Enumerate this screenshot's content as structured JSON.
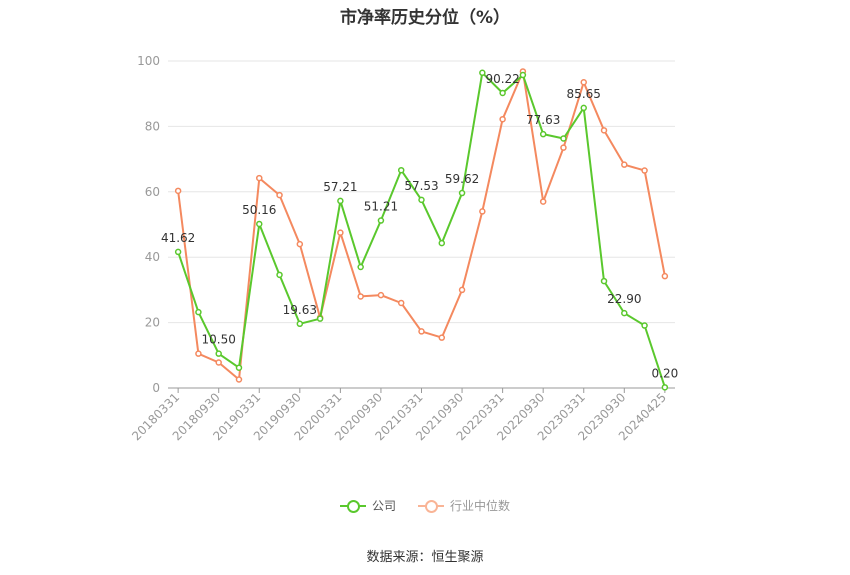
{
  "chart_data": {
    "type": "line",
    "title": "市净率历史分位（%）",
    "ylim": [
      0,
      100
    ],
    "yticks": [
      0,
      20,
      40,
      60,
      80,
      100
    ],
    "grid": "horizontal",
    "legend_position": "bottom",
    "x_tick_labels": [
      "20180331",
      "20180930",
      "20190331",
      "20190930",
      "20200331",
      "20200930",
      "20210331",
      "20210930",
      "20220331",
      "20220930",
      "20230331",
      "20230930",
      "20240425"
    ],
    "x": [
      "20180331",
      "20180630",
      "20180930",
      "20181231",
      "20190331",
      "20190630",
      "20190930",
      "20191231",
      "20200331",
      "20200630",
      "20200930",
      "20201231",
      "20210331",
      "20210630",
      "20210930",
      "20211231",
      "20220331",
      "20220630",
      "20220930",
      "20221231",
      "20230331",
      "20230630",
      "20230930",
      "20231231",
      "20240425"
    ],
    "series": [
      {
        "name": "公司",
        "color": "#5ac82d",
        "values": [
          41.62,
          23.2,
          10.5,
          6.2,
          50.16,
          34.6,
          19.63,
          21.2,
          57.21,
          37.0,
          51.21,
          66.6,
          57.53,
          44.3,
          59.62,
          96.4,
          90.22,
          95.7,
          77.63,
          76.3,
          85.65,
          32.7,
          22.9,
          19.1,
          0.2
        ],
        "labels": {
          "0": "41.62",
          "2": "10.50",
          "4": "50.16",
          "6": "19.63",
          "8": "57.21",
          "10": "51.21",
          "12": "57.53",
          "14": "59.62",
          "16": "90.22",
          "18": "77.63",
          "20": "85.65",
          "22": "22.90",
          "24": "0.20"
        }
      },
      {
        "name": "行业中位数",
        "color": "#f4895f",
        "values": [
          60.3,
          10.5,
          7.8,
          2.6,
          64.2,
          59.0,
          44.0,
          21.5,
          47.5,
          28.0,
          28.4,
          26.0,
          17.3,
          15.4,
          30.0,
          54.0,
          82.2,
          96.8,
          57.0,
          73.5,
          93.5,
          78.8,
          68.3,
          66.5,
          34.2
        ]
      }
    ]
  },
  "legend": {
    "company": "公司",
    "industry": "行业中位数"
  },
  "source": "数据来源：恒生聚源"
}
